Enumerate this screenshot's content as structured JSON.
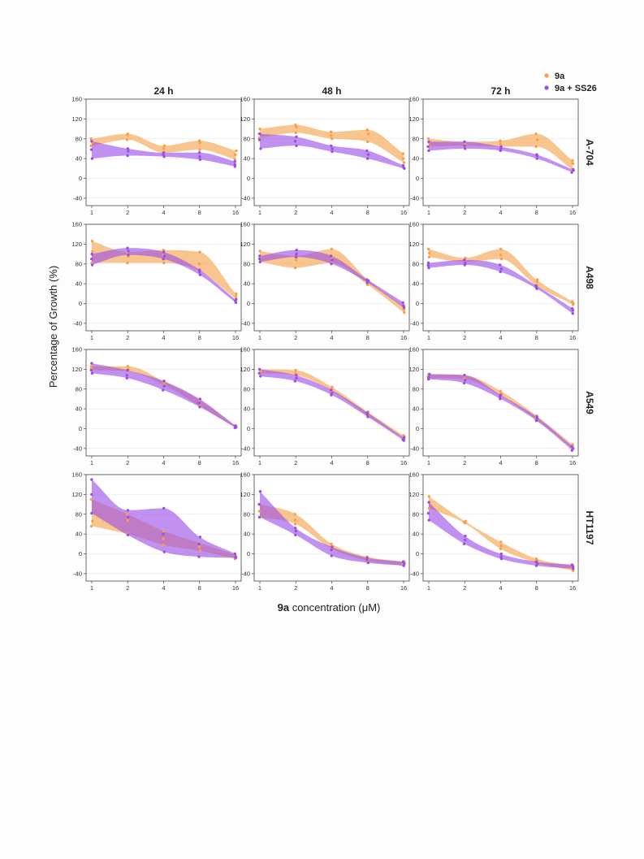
{
  "figure": {
    "ylabel": "Percentage of Growth (%)",
    "xlabel_bold": "9a",
    "xlabel_rest": " concentration  (μM)",
    "x_ticks": [
      "1",
      "2",
      "4",
      "8",
      "16"
    ],
    "x_values": [
      1,
      2,
      4,
      8,
      16
    ],
    "y_ticks": [
      "160",
      "120",
      "80",
      "40",
      "0",
      "-40"
    ],
    "y_tick_values": [
      160,
      120,
      80,
      40,
      0,
      -40
    ],
    "ylim": [
      -55,
      160
    ],
    "x_scale": "log2",
    "grid": true
  },
  "legend": {
    "placement": "top-right",
    "items": [
      {
        "label": "9a",
        "color": "#f5a14a"
      },
      {
        "label": "9a + SS26",
        "color": "#9b4de8"
      }
    ]
  },
  "timepoints": [
    "24 h",
    "48 h",
    "72 h"
  ],
  "cell_lines": [
    "A-704",
    "A498",
    "A549",
    "HT1197"
  ],
  "colors": {
    "series_9a": "#f5a14a",
    "series_9a_ss26": "#9b4de8",
    "overlap": "#c05f86"
  },
  "chart_data": [
    {
      "type": "area",
      "cell_line": "A-704",
      "timepoint": "24 h",
      "x": [
        1,
        2,
        4,
        8,
        16
      ],
      "series": [
        {
          "name": "9a",
          "values": [
            72,
            88,
            60,
            72,
            48
          ],
          "band_low": [
            66,
            78,
            52,
            58,
            38
          ],
          "band_high": [
            80,
            90,
            66,
            76,
            56
          ]
        },
        {
          "name": "9a + SS26",
          "values": [
            58,
            55,
            48,
            44,
            28
          ],
          "band_low": [
            40,
            46,
            44,
            38,
            24
          ],
          "band_high": [
            75,
            60,
            52,
            52,
            34
          ]
        }
      ]
    },
    {
      "type": "area",
      "cell_line": "A-704",
      "timepoint": "48 h",
      "x": [
        1,
        2,
        4,
        8,
        16
      ],
      "series": [
        {
          "name": "9a",
          "values": [
            90,
            104,
            86,
            90,
            40
          ],
          "band_low": [
            82,
            92,
            80,
            74,
            32
          ],
          "band_high": [
            100,
            108,
            94,
            98,
            50
          ]
        },
        {
          "name": "9a + SS26",
          "values": [
            78,
            75,
            60,
            48,
            22
          ],
          "band_low": [
            60,
            66,
            54,
            40,
            20
          ],
          "band_high": [
            90,
            84,
            66,
            56,
            26
          ]
        }
      ]
    },
    {
      "type": "area",
      "cell_line": "A-704",
      "timepoint": "72 h",
      "x": [
        1,
        2,
        4,
        8,
        16
      ],
      "series": [
        {
          "name": "9a",
          "values": [
            72,
            70,
            70,
            78,
            30
          ],
          "band_low": [
            64,
            66,
            64,
            64,
            18
          ],
          "band_high": [
            80,
            74,
            76,
            90,
            36
          ]
        },
        {
          "name": "9a + SS26",
          "values": [
            64,
            66,
            60,
            46,
            16
          ],
          "band_low": [
            56,
            60,
            56,
            40,
            12
          ],
          "band_high": [
            74,
            74,
            64,
            48,
            18
          ]
        }
      ]
    },
    {
      "type": "area",
      "cell_line": "A498",
      "timepoint": "24 h",
      "x": [
        1,
        2,
        4,
        8,
        16
      ],
      "series": [
        {
          "name": "9a",
          "values": [
            105,
            95,
            98,
            80,
            15
          ],
          "band_low": [
            82,
            82,
            82,
            66,
            10
          ],
          "band_high": [
            126,
            104,
            108,
            104,
            20
          ]
        },
        {
          "name": "9a + SS26",
          "values": [
            90,
            106,
            96,
            64,
            5
          ],
          "band_low": [
            78,
            98,
            90,
            58,
            2
          ],
          "band_high": [
            100,
            112,
            104,
            68,
            8
          ]
        }
      ]
    },
    {
      "type": "area",
      "cell_line": "A498",
      "timepoint": "48 h",
      "x": [
        1,
        2,
        4,
        8,
        16
      ],
      "series": [
        {
          "name": "9a",
          "values": [
            94,
            88,
            92,
            44,
            -12
          ],
          "band_low": [
            84,
            72,
            82,
            38,
            -18
          ],
          "band_high": [
            106,
            96,
            110,
            48,
            -6
          ]
        },
        {
          "name": "9a + SS26",
          "values": [
            90,
            100,
            88,
            46,
            -4
          ],
          "band_low": [
            84,
            94,
            80,
            42,
            -8
          ],
          "band_high": [
            96,
            108,
            96,
            48,
            2
          ]
        }
      ]
    },
    {
      "type": "area",
      "cell_line": "A498",
      "timepoint": "72 h",
      "x": [
        1,
        2,
        4,
        8,
        16
      ],
      "series": [
        {
          "name": "9a",
          "values": [
            102,
            90,
            98,
            44,
            0
          ],
          "band_low": [
            94,
            84,
            90,
            36,
            -2
          ],
          "band_high": [
            110,
            92,
            110,
            48,
            4
          ]
        },
        {
          "name": "9a + SS26",
          "values": [
            77,
            82,
            70,
            32,
            -14
          ],
          "band_low": [
            72,
            78,
            64,
            30,
            -20
          ],
          "band_high": [
            82,
            88,
            78,
            36,
            -10
          ]
        }
      ]
    },
    {
      "type": "area",
      "cell_line": "A549",
      "timepoint": "24 h",
      "x": [
        1,
        2,
        4,
        8,
        16
      ],
      "series": [
        {
          "name": "9a",
          "values": [
            122,
            120,
            92,
            52,
            4
          ],
          "band_low": [
            118,
            116,
            88,
            46,
            2
          ],
          "band_high": [
            126,
            126,
            96,
            58,
            6
          ]
        },
        {
          "name": "9a + SS26",
          "values": [
            118,
            108,
            86,
            52,
            3
          ],
          "band_low": [
            112,
            102,
            78,
            44,
            2
          ],
          "band_high": [
            132,
            118,
            96,
            60,
            6
          ]
        }
      ]
    },
    {
      "type": "area",
      "cell_line": "A549",
      "timepoint": "48 h",
      "x": [
        1,
        2,
        4,
        8,
        16
      ],
      "series": [
        {
          "name": "9a",
          "values": [
            116,
            112,
            80,
            30,
            -16
          ],
          "band_low": [
            112,
            108,
            76,
            26,
            -20
          ],
          "band_high": [
            120,
            118,
            84,
            34,
            -14
          ]
        },
        {
          "name": "9a + SS26",
          "values": [
            112,
            102,
            72,
            28,
            -22
          ],
          "band_low": [
            106,
            96,
            68,
            24,
            -24
          ],
          "band_high": [
            120,
            108,
            78,
            32,
            -18
          ]
        }
      ]
    },
    {
      "type": "area",
      "cell_line": "A549",
      "timepoint": "72 h",
      "x": [
        1,
        2,
        4,
        8,
        16
      ],
      "series": [
        {
          "name": "9a",
          "values": [
            106,
            106,
            70,
            22,
            -36
          ],
          "band_low": [
            102,
            100,
            66,
            18,
            -40
          ],
          "band_high": [
            110,
            108,
            76,
            26,
            -32
          ]
        },
        {
          "name": "9a + SS26",
          "values": [
            104,
            98,
            64,
            20,
            -40
          ],
          "band_low": [
            100,
            92,
            60,
            16,
            -44
          ],
          "band_high": [
            110,
            108,
            68,
            24,
            -36
          ]
        }
      ]
    },
    {
      "type": "area",
      "cell_line": "HT1197",
      "timepoint": "24 h",
      "x": [
        1,
        2,
        4,
        8,
        16
      ],
      "series": [
        {
          "name": "9a",
          "values": [
            66,
            68,
            30,
            14,
            -6
          ],
          "band_low": [
            56,
            40,
            18,
            6,
            -10
          ],
          "band_high": [
            110,
            80,
            46,
            22,
            -2
          ]
        },
        {
          "name": "9a + SS26",
          "values": [
            120,
            74,
            40,
            20,
            -6
          ],
          "band_low": [
            82,
            38,
            4,
            -6,
            -8
          ],
          "band_high": [
            150,
            88,
            92,
            34,
            0
          ]
        }
      ]
    },
    {
      "type": "area",
      "cell_line": "HT1197",
      "timepoint": "48 h",
      "x": [
        1,
        2,
        4,
        8,
        16
      ],
      "series": [
        {
          "name": "9a",
          "values": [
            86,
            68,
            14,
            -10,
            -20
          ],
          "band_low": [
            74,
            60,
            10,
            -14,
            -24
          ],
          "band_high": [
            100,
            80,
            20,
            -6,
            -16
          ]
        },
        {
          "name": "9a + SS26",
          "values": [
            100,
            46,
            8,
            -12,
            -20
          ],
          "band_low": [
            74,
            38,
            -4,
            -18,
            -24
          ],
          "band_high": [
            126,
            52,
            14,
            -8,
            -16
          ]
        }
      ]
    },
    {
      "type": "area",
      "cell_line": "HT1197",
      "timepoint": "72 h",
      "x": [
        1,
        2,
        4,
        8,
        16
      ],
      "series": [
        {
          "name": "9a",
          "values": [
            104,
            64,
            16,
            -14,
            -28
          ],
          "band_low": [
            92,
            62,
            10,
            -18,
            -34
          ],
          "band_high": [
            116,
            66,
            24,
            -10,
            -24
          ]
        },
        {
          "name": "9a + SS26",
          "values": [
            82,
            28,
            -6,
            -20,
            -26
          ],
          "band_low": [
            68,
            20,
            -10,
            -24,
            -30
          ],
          "band_high": [
            104,
            36,
            0,
            -16,
            -22
          ]
        }
      ]
    }
  ]
}
